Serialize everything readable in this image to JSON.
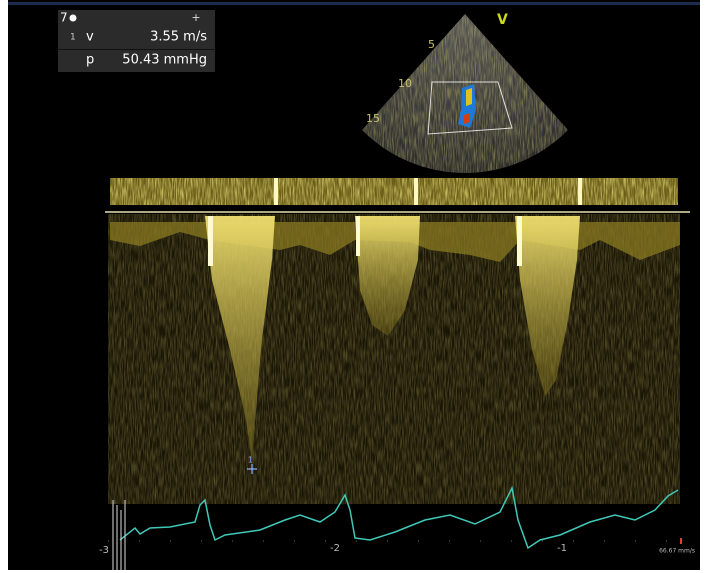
{
  "measurement": {
    "index": "7",
    "cursor": "+",
    "rows": [
      {
        "number": "1",
        "label": "v",
        "value": "3.55 m/s"
      },
      {
        "label": "p",
        "value": "50.43 mmHg"
      }
    ]
  },
  "image": {
    "label": "V",
    "depths": [
      "5",
      "10",
      "15"
    ]
  },
  "caliper": {
    "label": "1"
  },
  "timeline": {
    "ticks": [
      "-3",
      "-2",
      "-1"
    ],
    "sweep": "66.67 mm/s"
  }
}
